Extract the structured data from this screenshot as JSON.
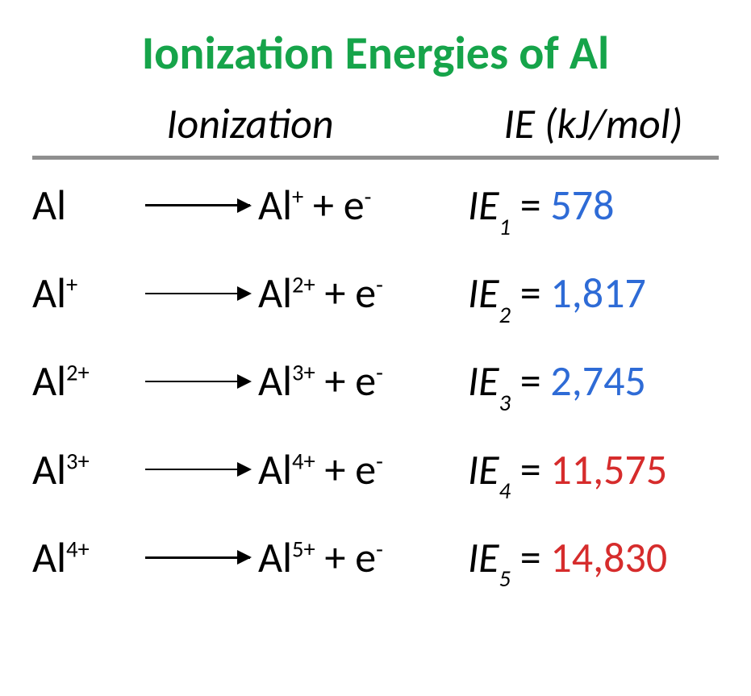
{
  "title": {
    "text": "Ionization Energies of Al",
    "color": "#16a44a"
  },
  "headers": {
    "ionization": "Ionization",
    "ie": "IE (kJ/mol)"
  },
  "colors": {
    "text": "#000000",
    "divider": "#8f8f8f",
    "blue": "#2e6bd6",
    "red": "#d62c2c"
  },
  "rows": [
    {
      "reactant_base": "Al",
      "reactant_sup": "",
      "product_base": "Al",
      "product_sup": "+",
      "ie_sub": "1",
      "value": "578",
      "value_color": "#2e6bd6"
    },
    {
      "reactant_base": "Al",
      "reactant_sup": "+",
      "product_base": "Al",
      "product_sup": "2+",
      "ie_sub": "2",
      "value": "1,817",
      "value_color": "#2e6bd6"
    },
    {
      "reactant_base": "Al",
      "reactant_sup": "2+",
      "product_base": "Al",
      "product_sup": "3+",
      "ie_sub": "3",
      "value": "2,745",
      "value_color": "#2e6bd6"
    },
    {
      "reactant_base": "Al",
      "reactant_sup": "3+",
      "product_base": "Al",
      "product_sup": "4+",
      "ie_sub": "4",
      "value": "11,575",
      "value_color": "#d62c2c"
    },
    {
      "reactant_base": "Al",
      "reactant_sup": "4+",
      "product_base": "Al",
      "product_sup": "5+",
      "ie_sub": "5",
      "value": "14,830",
      "value_color": "#d62c2c"
    }
  ],
  "electron": {
    "base": "e",
    "sup": "-"
  },
  "ie_prefix": "IE",
  "equals": " = ",
  "plus": " + "
}
